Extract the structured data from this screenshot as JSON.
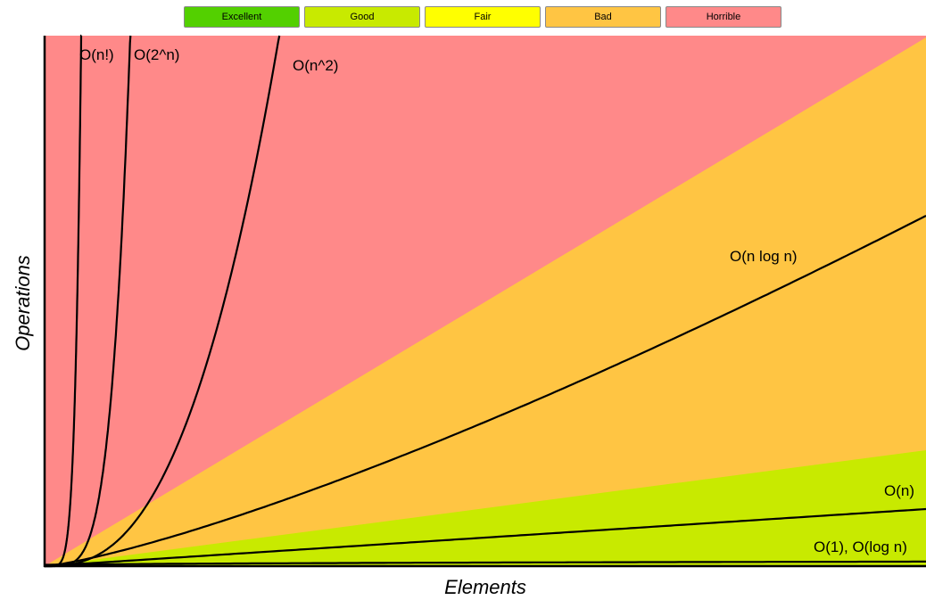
{
  "legend": [
    {
      "label": "Excellent",
      "color": "#53d000"
    },
    {
      "label": "Good",
      "color": "#c8ea00"
    },
    {
      "label": "Fair",
      "color": "#ffff00"
    },
    {
      "label": "Bad",
      "color": "#ffc543"
    },
    {
      "label": "Horrible",
      "color": "#ff8989"
    }
  ],
  "chart_data": {
    "type": "line",
    "title": "",
    "xlabel": "Elements",
    "ylabel": "Operations",
    "grid": false,
    "legend_placement": "top-center",
    "regions": [
      {
        "label": "Horrible",
        "color": "#ff8989"
      },
      {
        "label": "Bad",
        "color": "#ffc543"
      },
      {
        "label": "Good",
        "color": "#c8ea00"
      }
    ],
    "series": [
      {
        "name": "O(1), O(log n)"
      },
      {
        "name": "O(n)"
      },
      {
        "name": "O(n log n)"
      },
      {
        "name": "O(n^2)"
      },
      {
        "name": "O(2^n)"
      },
      {
        "name": "O(n!)"
      }
    ]
  }
}
